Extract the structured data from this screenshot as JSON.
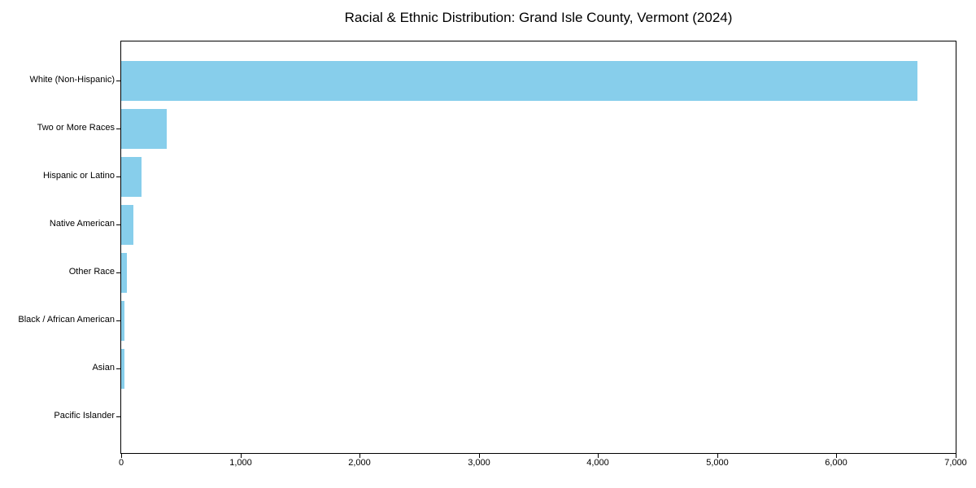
{
  "chart_data": {
    "type": "bar",
    "orientation": "horizontal",
    "title": "Racial & Ethnic Distribution: Grand Isle County, Vermont (2024)",
    "categories": [
      "White (Non-Hispanic)",
      "Two or More Races",
      "Hispanic or Latino",
      "Native American",
      "Other Race",
      "Black / African American",
      "Asian",
      "Pacific Islander"
    ],
    "values": [
      6680,
      380,
      170,
      105,
      45,
      30,
      25,
      0
    ],
    "xlabel": "",
    "ylabel": "",
    "xlim": [
      0,
      7000
    ],
    "xticks": [
      0,
      1000,
      2000,
      3000,
      4000,
      5000,
      6000,
      7000
    ],
    "xtick_labels": [
      "0",
      "1,000",
      "2,000",
      "3,000",
      "4,000",
      "5,000",
      "6,000",
      "7,000"
    ],
    "bar_color": "#87CEEB",
    "grid": false,
    "legend_position": "none",
    "frame": "full-box"
  }
}
